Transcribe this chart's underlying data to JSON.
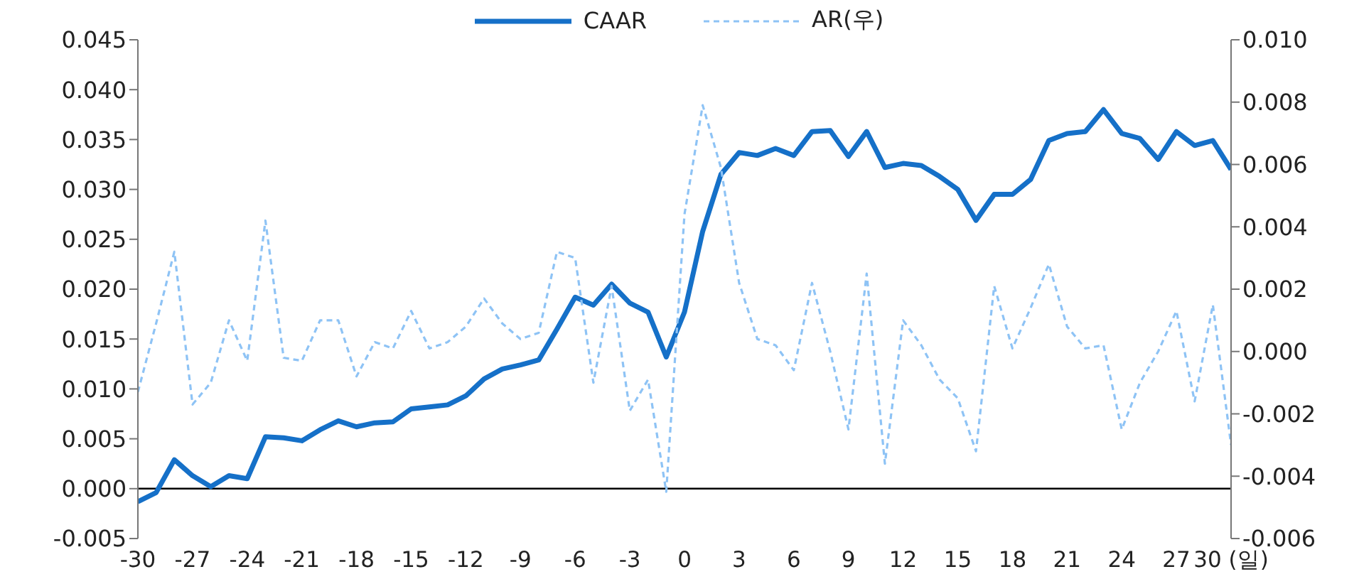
{
  "chart_data": {
    "type": "line",
    "x": [
      -30,
      -29,
      -28,
      -27,
      -26,
      -25,
      -24,
      -23,
      -22,
      -21,
      -20,
      -19,
      -18,
      -17,
      -16,
      -15,
      -14,
      -13,
      -12,
      -11,
      -10,
      -9,
      -8,
      -7,
      -6,
      -5,
      -4,
      -3,
      -2,
      -1,
      0,
      1,
      2,
      3,
      4,
      5,
      6,
      7,
      8,
      9,
      10,
      11,
      12,
      13,
      14,
      15,
      16,
      17,
      18,
      19,
      20,
      21,
      22,
      23,
      24,
      25,
      26,
      27,
      28,
      29,
      30
    ],
    "series": [
      {
        "name": "CAAR",
        "color": "#1570c8",
        "line_style": "solid",
        "values": [
          -0.0013,
          -0.0004,
          0.0029,
          0.0013,
          0.0002,
          0.0013,
          0.001,
          0.0052,
          0.0051,
          0.0048,
          0.0059,
          0.0068,
          0.0062,
          0.0066,
          0.0067,
          0.008,
          0.0082,
          0.0084,
          0.0093,
          0.011,
          0.012,
          0.0124,
          0.0129,
          0.016,
          0.0192,
          0.0184,
          0.0205,
          0.0186,
          0.0177,
          0.0132,
          0.0177,
          0.0258,
          0.0315,
          0.0337,
          0.0334,
          0.0341,
          0.0334,
          0.0358,
          0.0359,
          0.0333,
          0.0358,
          0.0322,
          0.0326,
          0.0324,
          0.0313,
          0.03,
          0.0269,
          0.0295,
          0.0295,
          0.031,
          0.0349,
          0.0356,
          0.0358,
          0.038,
          0.0356,
          0.0351,
          0.033,
          0.0358,
          0.0344,
          0.0349,
          0.032
        ]
      },
      {
        "name": "AR(우)",
        "color": "#8ec3f5",
        "line_style": "dashed",
        "axis": "y2",
        "values": [
          -0.0013,
          0.0009,
          0.0032,
          -0.0017,
          -0.001,
          0.001,
          -0.0003,
          0.0042,
          -0.0002,
          -0.0003,
          0.001,
          0.001,
          -0.0008,
          0.0003,
          0.0001,
          0.0013,
          0.0001,
          0.0003,
          0.0008,
          0.0017,
          0.0009,
          0.0004,
          0.0006,
          0.0032,
          0.003,
          -0.001,
          0.0021,
          -0.0019,
          -0.0009,
          -0.0045,
          0.0044,
          0.0079,
          0.0059,
          0.0022,
          0.0004,
          0.0002,
          -0.0006,
          0.0022,
          0.0,
          -0.0025,
          0.0025,
          -0.0036,
          0.001,
          0.0002,
          -0.0009,
          -0.0015,
          -0.0032,
          0.0021,
          0.0001,
          0.0014,
          0.0028,
          0.0008,
          0.0001,
          0.0002,
          -0.0025,
          -0.001,
          0.0,
          0.0013,
          -0.0016,
          0.0015,
          -0.003
        ]
      }
    ],
    "xlim": [
      -30,
      30
    ],
    "xticks": [
      -30,
      -27,
      -24,
      -21,
      -18,
      -15,
      -12,
      -9,
      -6,
      -3,
      0,
      3,
      6,
      9,
      12,
      15,
      18,
      21,
      24,
      27,
      {
        "value": 30,
        "label": "30 (일)"
      }
    ],
    "ylim": [
      -0.005,
      0.045
    ],
    "yticks": [
      {
        "value": -0.005,
        "label": "-0.005"
      },
      {
        "value": 0,
        "label": "0.000"
      },
      {
        "value": 0.005,
        "label": "0.005"
      },
      {
        "value": 0.01,
        "label": "0.010"
      },
      {
        "value": 0.015,
        "label": "0.015"
      },
      {
        "value": 0.02,
        "label": "0.020"
      },
      {
        "value": 0.025,
        "label": "0.025"
      },
      {
        "value": 0.03,
        "label": "0.030"
      },
      {
        "value": 0.035,
        "label": "0.035"
      },
      {
        "value": 0.04,
        "label": "0.040"
      },
      {
        "value": 0.045,
        "label": "0.045"
      }
    ],
    "y2lim": [
      -0.006,
      0.01
    ],
    "y2ticks": [
      {
        "value": -0.006,
        "label": "-0.006"
      },
      {
        "value": -0.004,
        "label": "-0.004"
      },
      {
        "value": -0.002,
        "label": "-0.002"
      },
      {
        "value": 0,
        "label": "0.000"
      },
      {
        "value": 0.002,
        "label": "0.002"
      },
      {
        "value": 0.004,
        "label": "0.004"
      },
      {
        "value": 0.006,
        "label": "0.006"
      },
      {
        "value": 0.008,
        "label": "0.008"
      },
      {
        "value": 0.01,
        "label": "0.010"
      }
    ],
    "ref_lines": [
      {
        "axis": "y",
        "value": 0,
        "color": "#000000"
      }
    ],
    "grid": false,
    "legend": "top",
    "marker": "none"
  }
}
